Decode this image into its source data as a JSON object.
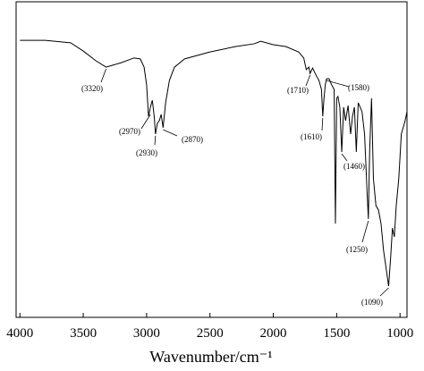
{
  "chart_data": {
    "type": "line",
    "xlabel": "Wavenumber/cm⁻¹",
    "x": [
      4000,
      3800,
      3600,
      3500,
      3400,
      3320,
      3200,
      3100,
      3050,
      3020,
      3000,
      2985,
      2970,
      2955,
      2940,
      2930,
      2915,
      2900,
      2885,
      2870,
      2850,
      2820,
      2780,
      2700,
      2500,
      2300,
      2150,
      2100,
      2000,
      1900,
      1800,
      1760,
      1740,
      1720,
      1710,
      1690,
      1660,
      1640,
      1620,
      1610,
      1600,
      1590,
      1580,
      1560,
      1540,
      1520,
      1510,
      1500,
      1490,
      1475,
      1460,
      1445,
      1430,
      1410,
      1390,
      1375,
      1360,
      1345,
      1330,
      1300,
      1280,
      1260,
      1250,
      1240,
      1225,
      1210,
      1190,
      1170,
      1150,
      1130,
      1110,
      1090,
      1075,
      1060,
      1045,
      1030,
      1010,
      990,
      960,
      945
    ],
    "values": [
      87.8,
      87.8,
      87.0,
      84.4,
      81.3,
      79.3,
      80.7,
      82.2,
      81.9,
      79.3,
      73.7,
      63.7,
      66.6,
      68.8,
      63.7,
      58.1,
      61.5,
      62.3,
      64.3,
      60.1,
      68.0,
      75.1,
      79.3,
      81.9,
      84.1,
      85.8,
      86.7,
      87.5,
      86.4,
      85.8,
      84.1,
      82.2,
      78.5,
      79.3,
      77.3,
      79.0,
      76.5,
      75.1,
      72.2,
      63.7,
      69.4,
      73.7,
      75.6,
      75.6,
      73.7,
      72.2,
      29.7,
      69.4,
      70.0,
      66.6,
      52.4,
      66.6,
      62.3,
      67.1,
      58.1,
      63.7,
      66.6,
      52.4,
      68.0,
      65.2,
      58.1,
      39.7,
      31.2,
      52.4,
      69.4,
      43.9,
      35.4,
      34.0,
      29.7,
      21.2,
      15.6,
      9.9,
      18.4,
      28.3,
      25.5,
      35.4,
      43.9,
      58.1,
      62.3,
      65.2
    ],
    "color": "#000000",
    "xlim": [
      4030,
      945
    ],
    "ylim": [
      0,
      100
    ],
    "xticks": [
      4000,
      3500,
      3000,
      2500,
      2000,
      1500,
      1000
    ],
    "annotations": [
      {
        "x": 3320,
        "label": "(3320)"
      },
      {
        "x": 2970,
        "label": "(2970)"
      },
      {
        "x": 2930,
        "label": "(2930)"
      },
      {
        "x": 2870,
        "label": "(2870)"
      },
      {
        "x": 1710,
        "label": "(1710)"
      },
      {
        "x": 1580,
        "label": "(1580)"
      },
      {
        "x": 1610,
        "label": "(1610)"
      },
      {
        "x": 1460,
        "label": "(1460)"
      },
      {
        "x": 1250,
        "label": "(1250)"
      },
      {
        "x": 1090,
        "label": "(1090)"
      }
    ]
  }
}
